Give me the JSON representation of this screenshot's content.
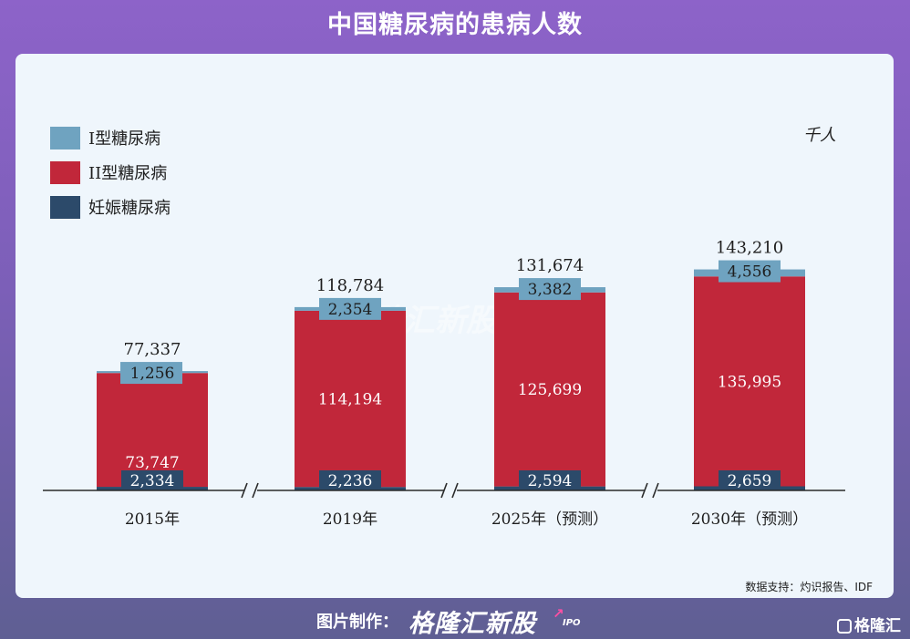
{
  "title": "中国糖尿病的患病人数",
  "source": "数据支持：灼识报告、IDF",
  "footer": {
    "label": "图片制作：",
    "brand": "格隆汇新股",
    "brand_sub": "IPO"
  },
  "corner_logo": "格隆汇",
  "watermark": {
    "text": "格隆汇新股",
    "sub": "IPO"
  },
  "colors": {
    "type1": "#6fa3c0",
    "type2": "#c1273a",
    "gestational": "#2c4a6a",
    "axis": "#2a2a2a",
    "panel_bg": "#eff6fc"
  },
  "chart_data": {
    "type": "bar",
    "stacked": true,
    "unit": "千人",
    "categories": [
      "2015年",
      "2019年",
      "2025年（预测）",
      "2030年（预测）"
    ],
    "totals": [
      77337,
      118784,
      131674,
      143210
    ],
    "total_labels": [
      "77,337",
      "118,784",
      "131,674",
      "143,210"
    ],
    "series": [
      {
        "name": "妊娠糖尿病",
        "values": [
          2334,
          2236,
          2594,
          2659
        ],
        "labels": [
          "2,334",
          "2,236",
          "2,594",
          "2,659"
        ],
        "color": "#2c4a6a"
      },
      {
        "name": "II型糖尿病",
        "values": [
          73747,
          114194,
          125699,
          135995
        ],
        "labels": [
          "73,747",
          "114,194",
          "125,699",
          "135,995"
        ],
        "color": "#c1273a"
      },
      {
        "name": "I型糖尿病",
        "values": [
          1256,
          2354,
          3382,
          4556
        ],
        "labels": [
          "1,256",
          "2,354",
          "3,382",
          "4,556"
        ],
        "color": "#6fa3c0"
      }
    ],
    "legend": [
      {
        "name": "I型糖尿病",
        "color": "#6fa3c0"
      },
      {
        "name": "II型糖尿病",
        "color": "#c1273a"
      },
      {
        "name": "妊娠糖尿病",
        "color": "#2c4a6a"
      }
    ],
    "legend_position": "top-left",
    "axis_breaks": true,
    "grid": false
  }
}
